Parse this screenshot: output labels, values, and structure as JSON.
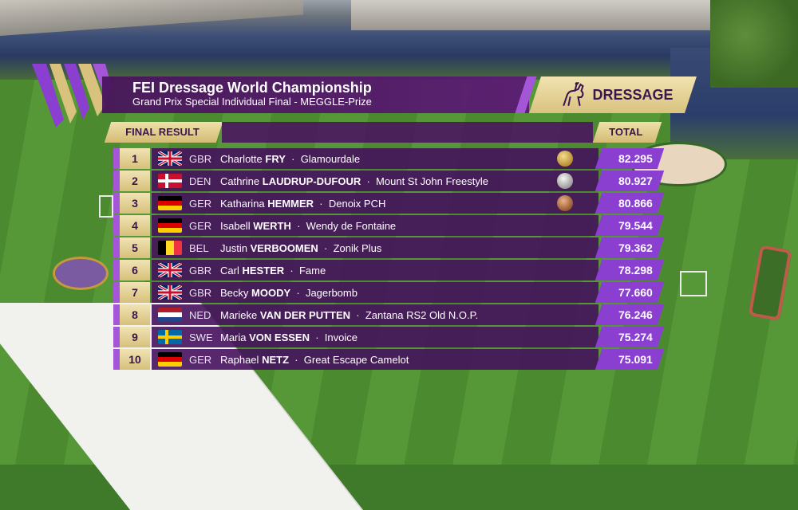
{
  "title": "FEI Dressage World Championship",
  "subtitle": "Grand Prix Special Individual Final  - MEGGLE-Prize",
  "discipline": "DRESSAGE",
  "header": {
    "final_result": "FINAL RESULT",
    "total": "TOTAL"
  },
  "results": [
    {
      "rank": "1",
      "nation": "GBR",
      "first": "Charlotte",
      "last": "FRY",
      "horse": "Glamourdale",
      "total": "82.295",
      "flag": "gbr",
      "medal": "gold"
    },
    {
      "rank": "2",
      "nation": "DEN",
      "first": "Cathrine",
      "last": "LAUDRUP-DUFOUR",
      "horse": "Mount St John Freestyle",
      "total": "80.927",
      "flag": "den",
      "medal": "silver"
    },
    {
      "rank": "3",
      "nation": "GER",
      "first": "Katharina",
      "last": "HEMMER",
      "horse": "Denoix PCH",
      "total": "80.866",
      "flag": "ger",
      "medal": "bronze"
    },
    {
      "rank": "4",
      "nation": "GER",
      "first": "Isabell",
      "last": "WERTH",
      "horse": "Wendy de Fontaine",
      "total": "79.544",
      "flag": "ger",
      "medal": ""
    },
    {
      "rank": "5",
      "nation": "BEL",
      "first": "Justin",
      "last": "VERBOOMEN",
      "horse": "Zonik Plus",
      "total": "79.362",
      "flag": "bel",
      "medal": ""
    },
    {
      "rank": "6",
      "nation": "GBR",
      "first": "Carl",
      "last": "HESTER",
      "horse": "Fame",
      "total": "78.298",
      "flag": "gbr",
      "medal": ""
    },
    {
      "rank": "7",
      "nation": "GBR",
      "first": "Becky",
      "last": "MOODY",
      "horse": "Jagerbomb",
      "total": "77.660",
      "flag": "gbr",
      "medal": ""
    },
    {
      "rank": "8",
      "nation": "NED",
      "first": "Marieke",
      "last": "VAN DER PUTTEN",
      "horse": "Zantana RS2 Old N.O.P.",
      "total": "76.246",
      "flag": "ned",
      "medal": ""
    },
    {
      "rank": "9",
      "nation": "SWE",
      "first": "Maria",
      "last": "VON ESSEN",
      "horse": "Invoice",
      "total": "75.274",
      "flag": "swe",
      "medal": ""
    },
    {
      "rank": "10",
      "nation": "GER",
      "first": "Raphael",
      "last": "NETZ",
      "horse": "Great Escape Camelot",
      "total": "75.091",
      "flag": "ger",
      "medal": ""
    }
  ],
  "colors": {
    "purple_bar": "#4a125c",
    "score_purple": "#8a3fd0",
    "gold": "#d8c27e",
    "accent_purple": "#a455d8"
  }
}
